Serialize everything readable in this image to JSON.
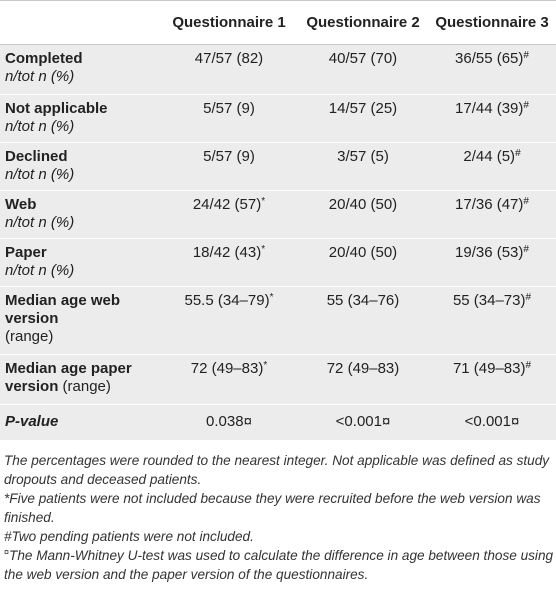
{
  "table": {
    "headers": [
      "",
      "Questionnaire 1",
      "Questionnaire 2",
      "Questionnaire 3"
    ],
    "rows": [
      {
        "label_main": "Completed",
        "label_sub": "n/tot n (%)",
        "values": [
          {
            "text": "47/57 (82)",
            "mark": ""
          },
          {
            "text": "40/57 (70)",
            "mark": ""
          },
          {
            "text": "36/55 (65)",
            "mark": "#"
          }
        ]
      },
      {
        "label_main": "Not applicable",
        "label_sub": "n/tot n (%)",
        "values": [
          {
            "text": "5/57 (9)",
            "mark": ""
          },
          {
            "text": "14/57 (25)",
            "mark": ""
          },
          {
            "text": "17/44 (39)",
            "mark": "#"
          }
        ]
      },
      {
        "label_main": "Declined",
        "label_sub": "n/tot n (%)",
        "values": [
          {
            "text": "5/57 (9)",
            "mark": ""
          },
          {
            "text": "3/57 (5)",
            "mark": ""
          },
          {
            "text": "2/44 (5)",
            "mark": "#"
          }
        ]
      },
      {
        "label_main": "Web",
        "label_sub": "n/tot n (%)",
        "values": [
          {
            "text": "24/42 (57)",
            "mark": "*"
          },
          {
            "text": "20/40 (50)",
            "mark": ""
          },
          {
            "text": "17/36 (47)",
            "mark": "#"
          }
        ]
      },
      {
        "label_main": "Paper",
        "label_sub": "n/tot n (%)",
        "values": [
          {
            "text": "18/42 (43)",
            "mark": "*"
          },
          {
            "text": "20/40 (50)",
            "mark": ""
          },
          {
            "text": "19/36 (53)",
            "mark": "#"
          }
        ]
      },
      {
        "label_main": "Median age web version",
        "label_sub": "(range)",
        "values": [
          {
            "text": "55.5 (34–79)",
            "mark": "*"
          },
          {
            "text": "55 (34–76)",
            "mark": ""
          },
          {
            "text": "55 (34–73)",
            "mark": "#"
          }
        ]
      },
      {
        "label_main": "Median age paper version",
        "label_sub": "(range)",
        "values": [
          {
            "text": "72 (49–83)",
            "mark": "*"
          },
          {
            "text": "72 (49–83)",
            "mark": ""
          },
          {
            "text": "71 (49–83)",
            "mark": "#"
          }
        ]
      },
      {
        "label_main": "P-value",
        "label_sub": "",
        "values": [
          {
            "text": "0.038¤",
            "mark": ""
          },
          {
            "text": "<0.001¤",
            "mark": ""
          },
          {
            "text": "<0.001¤",
            "mark": ""
          }
        ]
      }
    ]
  },
  "notes": {
    "n1": "The percentages were rounded to the nearest integer. Not applicable was defined as study dropouts and deceased patients.",
    "n2": "*Five patients were not included because they were recruited before the web version was finished.",
    "n3": "#Two pending patients were not included.",
    "n4_mark": "¤",
    "n4": "The Mann-Whitney U-test was used to calculate the difference in age between those using the web version and the paper version of the questionnaires."
  }
}
